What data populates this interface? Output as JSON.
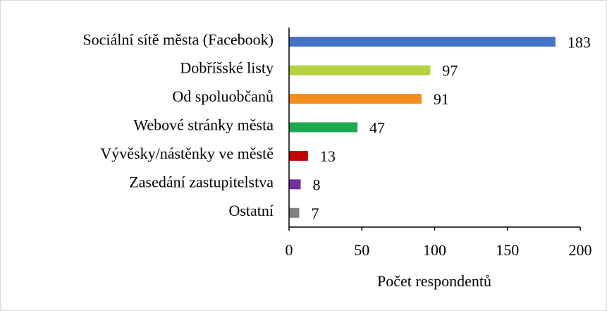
{
  "chart_data": {
    "type": "bar",
    "orientation": "horizontal",
    "categories": [
      "Sociální sítě města (Facebook)",
      "Dobříšské listy",
      "Od spoluobčanů",
      "Webové stránky města",
      "Vývěsky/nástěnky ve městě",
      "Zasedání zastupitelstva",
      "Ostatní"
    ],
    "values": [
      183,
      97,
      91,
      47,
      13,
      8,
      7
    ],
    "colors": [
      "#4472c4",
      "#b4d33c",
      "#f28e1c",
      "#1ea84f",
      "#c00000",
      "#7030a0",
      "#808080"
    ],
    "xlabel": "Počet respondentů",
    "xlim": [
      0,
      200
    ],
    "xticks": [
      0,
      50,
      100,
      150,
      200
    ],
    "grid": false
  }
}
